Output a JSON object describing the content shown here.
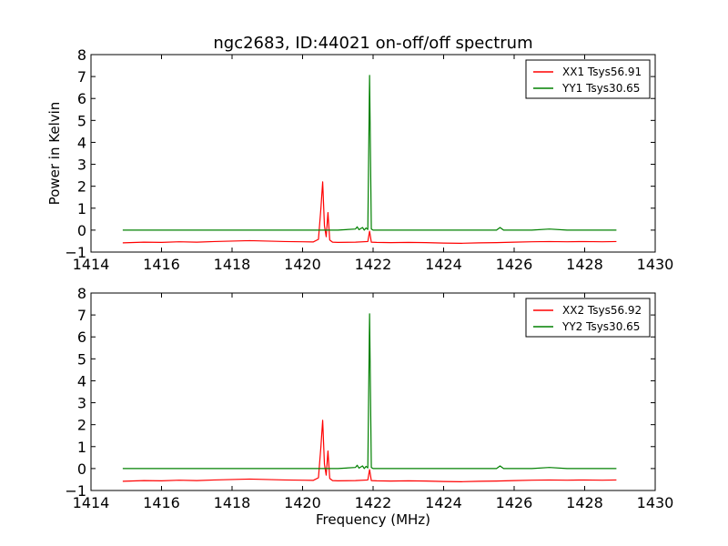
{
  "figure": {
    "title": "ngc2683, ID:44021 on-off/off spectrum"
  },
  "chart_data": [
    {
      "type": "line",
      "title": "ngc2683, ID:44021 on-off/off spectrum",
      "xlabel": "",
      "ylabel": "Power in Kelvin",
      "xlim": [
        1414,
        1430
      ],
      "ylim": [
        -1,
        8
      ],
      "xticks": [
        "1414",
        "1416",
        "1418",
        "1420",
        "1422",
        "1424",
        "1426",
        "1428",
        "1430"
      ],
      "yticks": [
        "−1",
        "0",
        "1",
        "2",
        "3",
        "4",
        "5",
        "6",
        "7",
        "8"
      ],
      "grid": false,
      "legend": "top-right",
      "series": [
        {
          "name": "XX1 Tsys56.91",
          "color": "#ff0000",
          "x": [
            1414.9,
            1415.5,
            1416.0,
            1416.5,
            1417.0,
            1417.5,
            1418.0,
            1418.5,
            1419.0,
            1419.5,
            1420.0,
            1420.3,
            1420.45,
            1420.52,
            1420.57,
            1420.62,
            1420.67,
            1420.72,
            1420.77,
            1420.85,
            1421.0,
            1421.5,
            1421.85,
            1421.9,
            1421.95,
            1422.1,
            1422.5,
            1423.0,
            1423.5,
            1424.0,
            1424.5,
            1425.0,
            1425.5,
            1426.0,
            1426.5,
            1427.0,
            1427.5,
            1428.0,
            1428.5,
            1428.9
          ],
          "y": [
            -0.58,
            -0.55,
            -0.56,
            -0.53,
            -0.55,
            -0.52,
            -0.5,
            -0.48,
            -0.5,
            -0.52,
            -0.53,
            -0.54,
            -0.42,
            1.0,
            2.2,
            0.2,
            -0.3,
            0.8,
            -0.45,
            -0.55,
            -0.56,
            -0.55,
            -0.52,
            -0.05,
            -0.55,
            -0.56,
            -0.57,
            -0.56,
            -0.57,
            -0.59,
            -0.6,
            -0.58,
            -0.57,
            -0.55,
            -0.53,
            -0.52,
            -0.53,
            -0.52,
            -0.53,
            -0.52
          ]
        },
        {
          "name": "YY1 Tsys30.65",
          "color": "#008000",
          "x": [
            1414.9,
            1415.5,
            1416.0,
            1416.5,
            1417.0,
            1417.5,
            1418.0,
            1418.5,
            1419.0,
            1419.5,
            1420.0,
            1420.5,
            1421.0,
            1421.5,
            1421.55,
            1421.6,
            1421.7,
            1421.75,
            1421.8,
            1421.85,
            1421.9,
            1421.95,
            1422.0,
            1422.5,
            1423.0,
            1423.5,
            1424.0,
            1424.5,
            1425.0,
            1425.5,
            1425.6,
            1425.7,
            1426.0,
            1426.5,
            1427.0,
            1427.5,
            1428.0,
            1428.5,
            1428.9
          ],
          "y": [
            0.0,
            0.0,
            0.0,
            0.0,
            0.0,
            0.0,
            0.0,
            0.0,
            0.0,
            0.0,
            0.0,
            0.0,
            0.0,
            0.05,
            0.15,
            0.02,
            0.12,
            0.0,
            0.1,
            0.03,
            7.05,
            0.05,
            0.0,
            0.0,
            0.0,
            0.0,
            0.0,
            0.0,
            0.0,
            0.0,
            0.12,
            0.0,
            0.0,
            0.0,
            0.05,
            0.0,
            0.0,
            0.0,
            0.0
          ]
        }
      ]
    },
    {
      "type": "line",
      "title": "",
      "xlabel": "Frequency (MHz)",
      "ylabel": "",
      "xlim": [
        1414,
        1430
      ],
      "ylim": [
        -1,
        8
      ],
      "xticks": [
        "1414",
        "1416",
        "1418",
        "1420",
        "1422",
        "1424",
        "1426",
        "1428",
        "1430"
      ],
      "yticks": [
        "−1",
        "0",
        "1",
        "2",
        "3",
        "4",
        "5",
        "6",
        "7",
        "8"
      ],
      "grid": false,
      "legend": "top-right",
      "series": [
        {
          "name": "XX2 Tsys56.92",
          "color": "#ff0000",
          "x": [
            1414.9,
            1415.5,
            1416.0,
            1416.5,
            1417.0,
            1417.5,
            1418.0,
            1418.5,
            1419.0,
            1419.5,
            1420.0,
            1420.3,
            1420.45,
            1420.52,
            1420.57,
            1420.62,
            1420.67,
            1420.72,
            1420.77,
            1420.85,
            1421.0,
            1421.5,
            1421.85,
            1421.9,
            1421.95,
            1422.1,
            1422.5,
            1423.0,
            1423.5,
            1424.0,
            1424.5,
            1425.0,
            1425.5,
            1426.0,
            1426.5,
            1427.0,
            1427.5,
            1428.0,
            1428.5,
            1428.9
          ],
          "y": [
            -0.58,
            -0.55,
            -0.56,
            -0.53,
            -0.55,
            -0.52,
            -0.5,
            -0.48,
            -0.5,
            -0.52,
            -0.53,
            -0.54,
            -0.42,
            1.0,
            2.2,
            0.2,
            -0.3,
            0.8,
            -0.45,
            -0.55,
            -0.56,
            -0.55,
            -0.52,
            -0.05,
            -0.55,
            -0.56,
            -0.57,
            -0.56,
            -0.57,
            -0.59,
            -0.6,
            -0.58,
            -0.57,
            -0.55,
            -0.53,
            -0.52,
            -0.53,
            -0.52,
            -0.53,
            -0.52
          ]
        },
        {
          "name": "YY2 Tsys30.65",
          "color": "#008000",
          "x": [
            1414.9,
            1415.5,
            1416.0,
            1416.5,
            1417.0,
            1417.5,
            1418.0,
            1418.5,
            1419.0,
            1419.5,
            1420.0,
            1420.5,
            1421.0,
            1421.5,
            1421.55,
            1421.6,
            1421.7,
            1421.75,
            1421.8,
            1421.85,
            1421.9,
            1421.95,
            1422.0,
            1422.5,
            1423.0,
            1423.5,
            1424.0,
            1424.5,
            1425.0,
            1425.5,
            1425.6,
            1425.7,
            1426.0,
            1426.5,
            1427.0,
            1427.5,
            1428.0,
            1428.5,
            1428.9
          ],
          "y": [
            0.0,
            0.0,
            0.0,
            0.0,
            0.0,
            0.0,
            0.0,
            0.0,
            0.0,
            0.0,
            0.0,
            0.0,
            0.0,
            0.05,
            0.15,
            0.02,
            0.12,
            0.0,
            0.1,
            0.03,
            7.05,
            0.05,
            0.0,
            0.0,
            0.0,
            0.0,
            0.0,
            0.0,
            0.0,
            0.0,
            0.12,
            0.0,
            0.0,
            0.0,
            0.05,
            0.0,
            0.0,
            0.0,
            0.0
          ]
        }
      ]
    }
  ]
}
